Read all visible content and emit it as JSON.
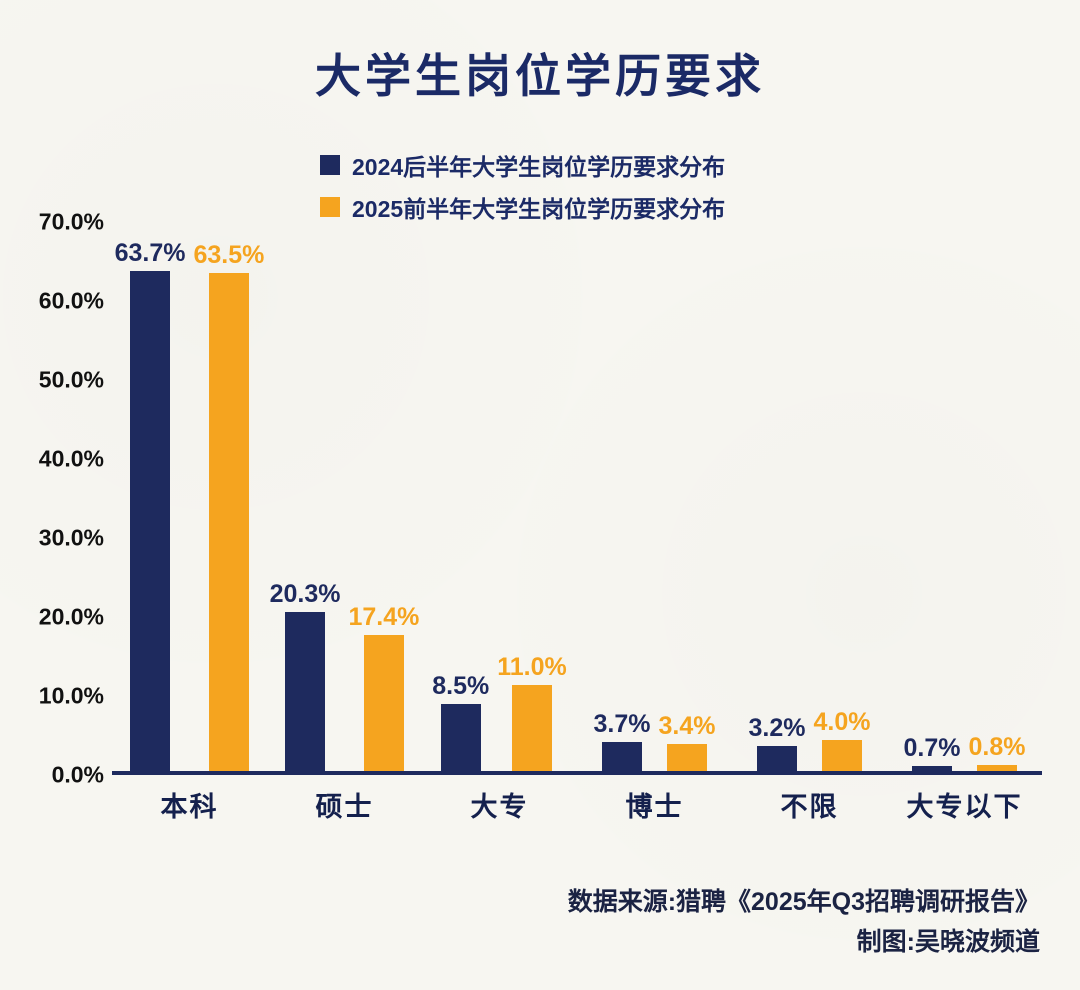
{
  "title": "大学生岗位学历要求",
  "legend": {
    "items": [
      {
        "label": "2024后半年大学生岗位学历要求分布",
        "color": "#1e2a5e"
      },
      {
        "label": "2025前半年大学生岗位学历要求分布",
        "color": "#f5a41f"
      }
    ]
  },
  "chart_data": {
    "type": "bar",
    "categories": [
      "本科",
      "硕士",
      "大专",
      "博士",
      "不限",
      "大专以下"
    ],
    "series": [
      {
        "name": "2024后半年大学生岗位学历要求分布",
        "color": "#1e2a5e",
        "values": [
          63.7,
          20.3,
          8.5,
          3.7,
          3.2,
          0.7
        ]
      },
      {
        "name": "2025前半年大学生岗位学历要求分布",
        "color": "#f5a41f",
        "values": [
          63.5,
          17.4,
          11.0,
          3.4,
          4.0,
          0.8
        ]
      }
    ],
    "title": "大学生岗位学历要求",
    "xlabel": "",
    "ylabel": "",
    "ylim": [
      0,
      70
    ],
    "yticks": [
      "70.0%",
      "60.0%",
      "50.0%",
      "40.0%",
      "30.0%",
      "20.0%",
      "10.0%",
      "0.0%"
    ],
    "grid": false,
    "legend_position": "top",
    "value_label_suffix": "%"
  },
  "footer": {
    "source": "数据来源:猎聘《2025年Q3招聘调研报告》",
    "credit": "制图:吴晓波频道"
  },
  "colors": {
    "background": "#f7f6f1",
    "axis": "#1e2a5e",
    "title": "#1b2a66",
    "series1": "#1e2a5e",
    "series2": "#f5a41f"
  }
}
